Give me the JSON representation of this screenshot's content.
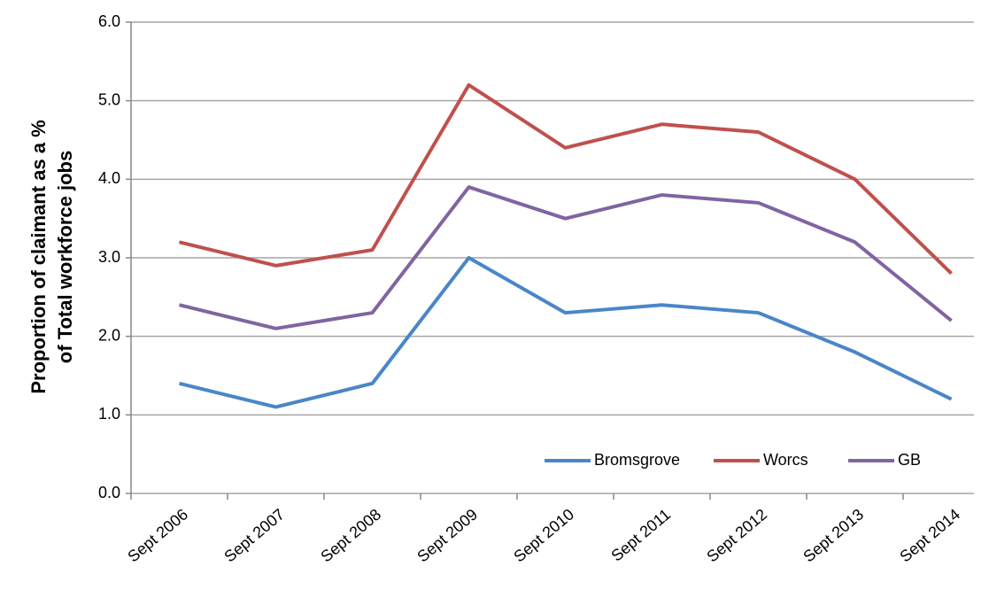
{
  "chart_data": {
    "type": "line",
    "y_label": [
      "Proportion of claimant as a %",
      "of Total workforce jobs"
    ],
    "categories": [
      "Sept 2006",
      "Sept 2007",
      "Sept 2008",
      "Sept 2009",
      "Sept 2010",
      "Sept 2011",
      "Sept 2012",
      "Sept 2013",
      "Sept 2014"
    ],
    "series": [
      {
        "name": "Bromsgrove",
        "color": "#4a86c8",
        "values": [
          1.4,
          1.1,
          1.4,
          3.0,
          2.3,
          2.4,
          2.3,
          1.8,
          1.2
        ]
      },
      {
        "name": "Worcs",
        "color": "#c0504d",
        "values": [
          3.2,
          2.9,
          3.1,
          5.2,
          4.4,
          4.7,
          4.6,
          4.0,
          2.8
        ]
      },
      {
        "name": "GB",
        "color": "#8064a2",
        "values": [
          2.4,
          2.1,
          2.3,
          3.9,
          3.5,
          3.8,
          3.7,
          3.2,
          2.2
        ]
      }
    ],
    "ylim": [
      0,
      6
    ],
    "yticks": [
      {
        "value": 0,
        "label": "0.0"
      },
      {
        "value": 1,
        "label": "1.0"
      },
      {
        "value": 2,
        "label": "2.0"
      },
      {
        "value": 3,
        "label": "3.0"
      },
      {
        "value": 4,
        "label": "4.0"
      },
      {
        "value": 5,
        "label": "5.0"
      },
      {
        "value": 6,
        "label": "6.0"
      }
    ],
    "grid": true,
    "legend": "bottom-right"
  }
}
